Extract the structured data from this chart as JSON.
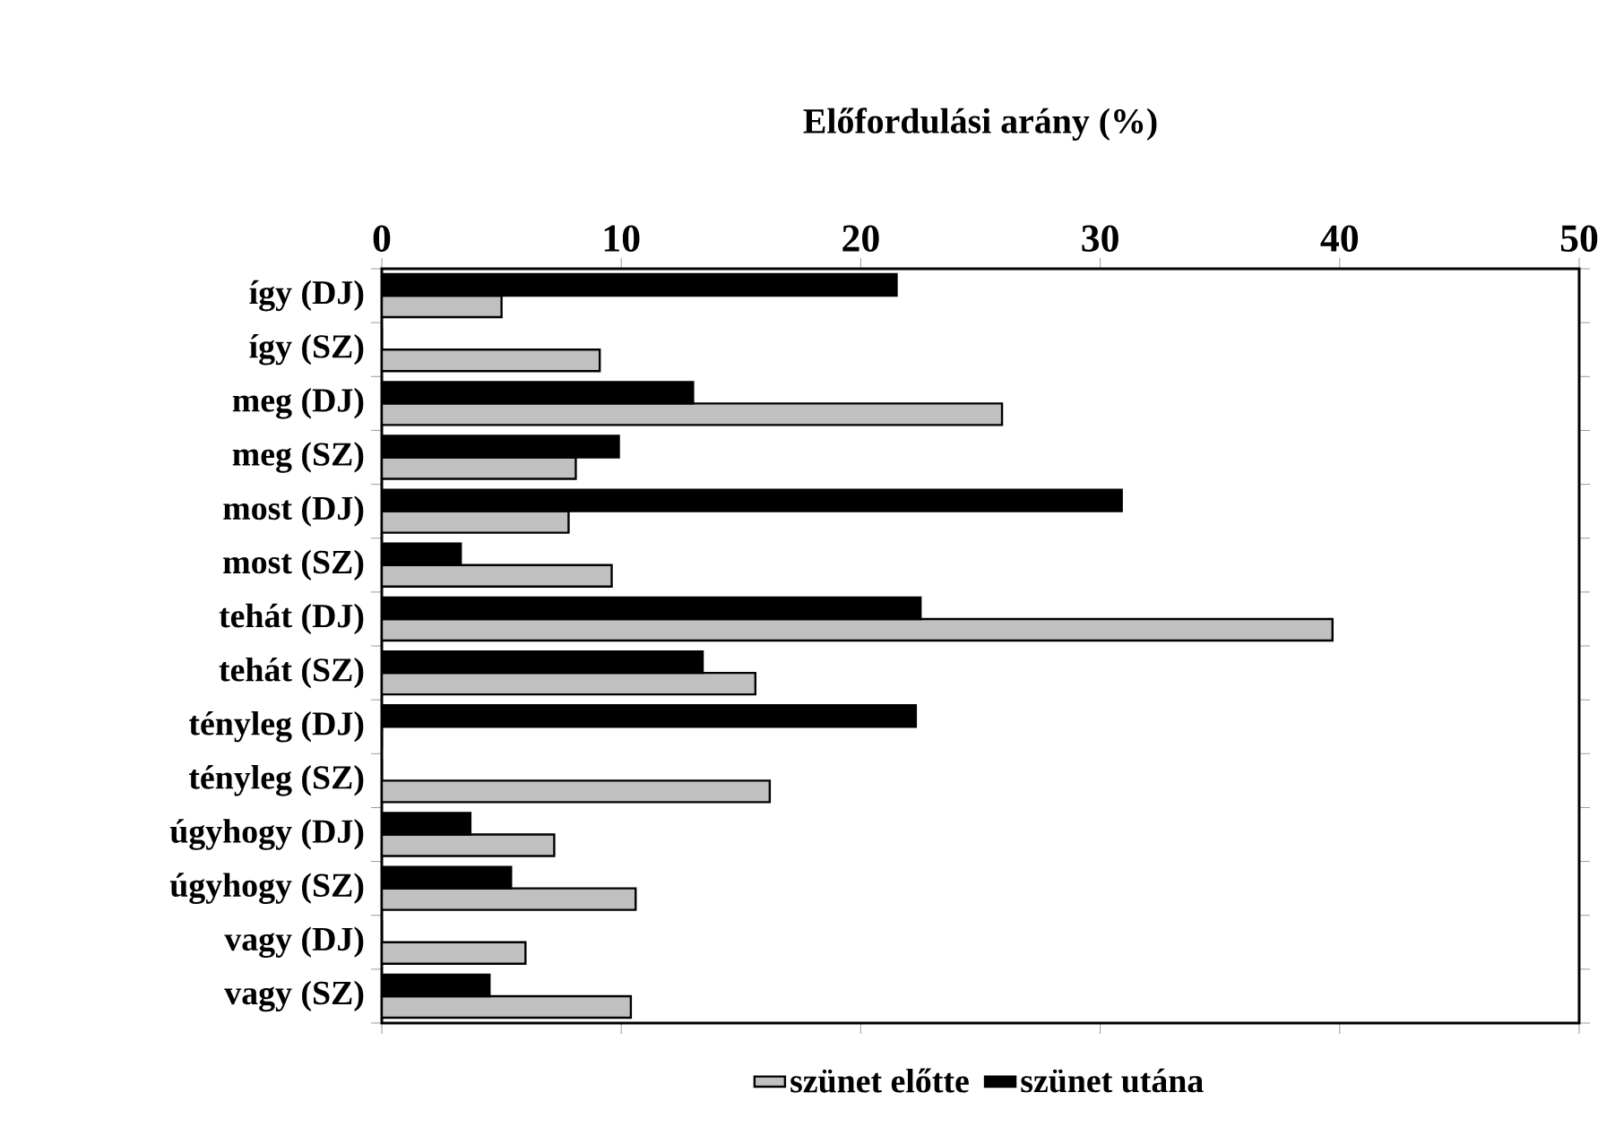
{
  "chart_data": {
    "type": "bar",
    "orientation": "horizontal",
    "title": "Előfordulási arány (%)",
    "categories": [
      "így (DJ)",
      "így (SZ)",
      "meg (DJ)",
      "meg (SZ)",
      "most (DJ)",
      "most (SZ)",
      "tehát (DJ)",
      "tehát (SZ)",
      "tényleg (DJ)",
      "tényleg (SZ)",
      "úgyhogy (DJ)",
      "úgyhogy (SZ)",
      "vagy (DJ)",
      "vagy (SZ)"
    ],
    "series": [
      {
        "name": "szünet előtte",
        "color": "#c0c0c0",
        "values": [
          5.0,
          9.1,
          25.9,
          8.1,
          7.8,
          9.6,
          39.7,
          15.6,
          0,
          16.2,
          7.2,
          10.6,
          6.0,
          10.4
        ]
      },
      {
        "name": "szünet utána",
        "color": "#000000",
        "values": [
          21.5,
          0,
          13.0,
          9.9,
          30.9,
          3.3,
          22.5,
          13.4,
          22.3,
          0,
          3.7,
          5.4,
          0,
          4.5
        ]
      }
    ],
    "xlim": [
      0,
      50
    ],
    "xticks": [
      0,
      10,
      20,
      30,
      40,
      50
    ],
    "legend": "bottom"
  }
}
